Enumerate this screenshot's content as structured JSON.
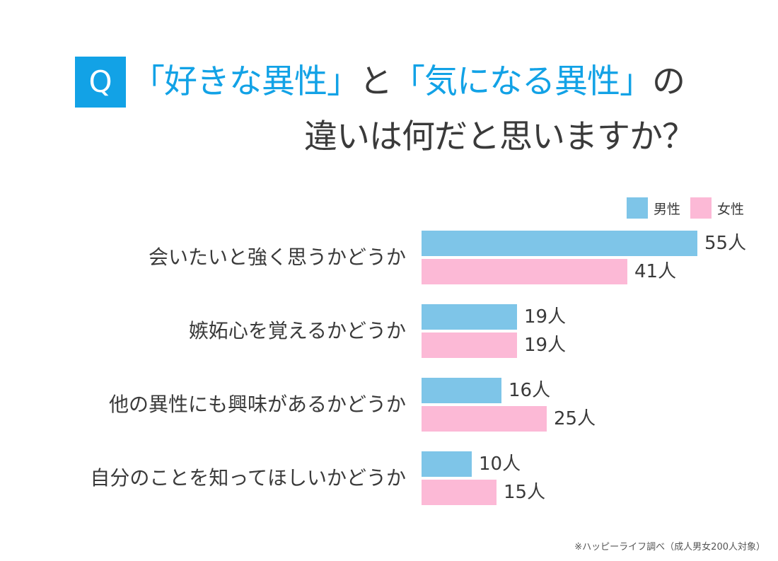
{
  "title": {
    "badge": "Q",
    "line1_parts": [
      "「好きな異性」",
      "と",
      "「気になる異性」",
      "の"
    ],
    "line2": "違いは何だと思いますか？"
  },
  "colors": {
    "male": "#7ec5e8",
    "female": "#fcb9d6",
    "accent": "#12a2e6"
  },
  "legend": {
    "male": "男性",
    "female": "女性"
  },
  "source": "※ハッピーライフ調べ（成人男女200人対象）",
  "chart_data": {
    "type": "bar",
    "orientation": "horizontal",
    "unit": "人",
    "categories": [
      "会いたいと強く思うかどうか",
      "嫉妬心を覚えるかどうか",
      "他の異性にも興味があるかどうか",
      "自分のことを知ってほしいかどうか"
    ],
    "series": [
      {
        "name": "男性",
        "values": [
          55,
          19,
          16,
          10
        ]
      },
      {
        "name": "女性",
        "values": [
          41,
          19,
          25,
          15
        ]
      }
    ],
    "xlim": [
      0,
      55
    ],
    "grid": false,
    "legend_position": "top-right"
  }
}
